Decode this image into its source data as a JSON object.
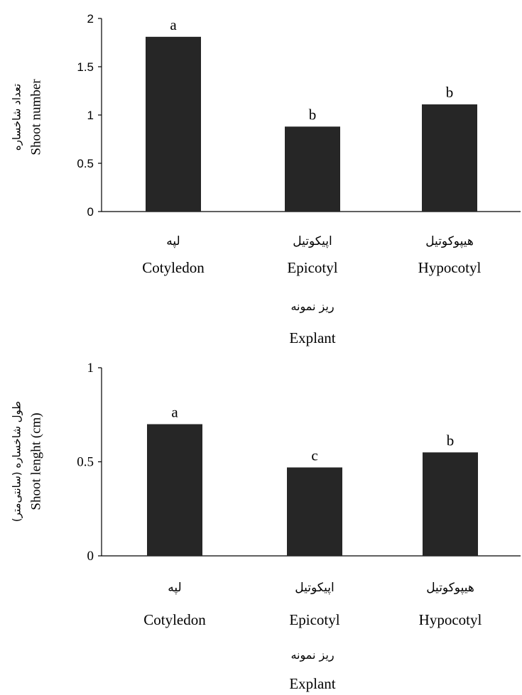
{
  "chart_data": [
    {
      "type": "bar",
      "categories": [
        "Cotyledon",
        "Epicotyl",
        "Hypocotyl"
      ],
      "categories_fa": [
        "لپه",
        "اپیکوتیل",
        "هیپوکوتیل"
      ],
      "values": [
        1.81,
        0.88,
        1.11
      ],
      "letters": [
        "a",
        "b",
        "b"
      ],
      "ylim": [
        0,
        2
      ],
      "yticks": [
        "0",
        "0.5",
        "1",
        "1.5",
        "2"
      ],
      "ylabel": "Shoot number",
      "ylabel_fa": "تعداد شاخساره",
      "xlabel": "Explant",
      "xlabel_fa": "ریز نمونه",
      "bar_color": "#262626"
    },
    {
      "type": "bar",
      "categories": [
        "Cotyledon",
        "Epicotyl",
        "Hypocotyl"
      ],
      "categories_fa": [
        "لپه",
        "اپیکوتیل",
        "هیپوکوتیل"
      ],
      "values": [
        0.7,
        0.47,
        0.55
      ],
      "letters": [
        "a",
        "c",
        "b"
      ],
      "ylim": [
        0,
        1
      ],
      "yticks": [
        "0",
        "0.5",
        "1"
      ],
      "ylabel": "Shoot lenght (cm)",
      "ylabel_fa": "طول شاخساره (سانتی‌متر)",
      "xlabel": "Explant",
      "xlabel_fa": "ریز نمونه",
      "bar_color": "#262626"
    }
  ]
}
